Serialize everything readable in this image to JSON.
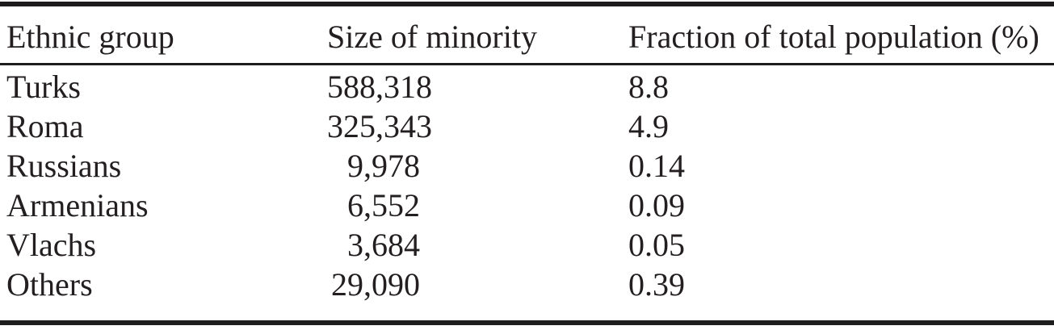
{
  "page": {
    "background": "#ffffff",
    "text_color": "#231f20",
    "rule_color": "#1e1c1d"
  },
  "table": {
    "columns": {
      "group": "Ethnic group",
      "size": "Size of minority",
      "fraction": "Fraction of total population (%)"
    },
    "rows": [
      {
        "group": "Turks",
        "size": "588,318",
        "fraction": "8.8"
      },
      {
        "group": "Roma",
        "size": "325,343",
        "fraction": "4.9"
      },
      {
        "group": "Russians",
        "size": "9,978",
        "fraction": "0.14"
      },
      {
        "group": "Armenians",
        "size": "6,552",
        "fraction": "0.09"
      },
      {
        "group": "Vlachs",
        "size": "3,684",
        "fraction": "0.05"
      },
      {
        "group": "Others",
        "size": "29,090",
        "fraction": "0.39"
      }
    ]
  }
}
